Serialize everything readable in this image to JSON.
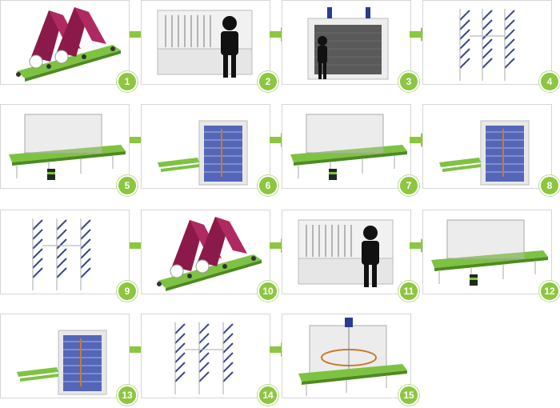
{
  "steps": [
    {
      "number": "1",
      "scene": "fabric-rolls-on-conveyor"
    },
    {
      "number": "2",
      "scene": "worker-at-cabinet"
    },
    {
      "number": "3",
      "scene": "worker-at-spray-booth"
    },
    {
      "number": "4",
      "scene": "hanging-racks"
    },
    {
      "number": "5",
      "scene": "frame-over-conveyor-with-can"
    },
    {
      "number": "6",
      "scene": "stacked-drying-tower"
    },
    {
      "number": "7",
      "scene": "frame-over-conveyor-with-can"
    },
    {
      "number": "8",
      "scene": "stacked-drying-tower"
    },
    {
      "number": "9",
      "scene": "hanging-racks"
    },
    {
      "number": "10",
      "scene": "fabric-rolls-on-conveyor"
    },
    {
      "number": "11",
      "scene": "worker-at-cabinet"
    },
    {
      "number": "12",
      "scene": "frame-over-conveyor-with-can"
    },
    {
      "number": "13",
      "scene": "stacked-drying-tower"
    },
    {
      "number": "14",
      "scene": "hanging-racks"
    },
    {
      "number": "15",
      "scene": "rotating-table-in-glass-box"
    }
  ],
  "colors": {
    "badge": "#8dc63f",
    "arrow": "#8dc63f",
    "conveyor": "#7ec242",
    "fabric": "#8b1a4a",
    "rack_stripe": "#3a4a8c",
    "tower_blue": "#3b4fb0"
  }
}
